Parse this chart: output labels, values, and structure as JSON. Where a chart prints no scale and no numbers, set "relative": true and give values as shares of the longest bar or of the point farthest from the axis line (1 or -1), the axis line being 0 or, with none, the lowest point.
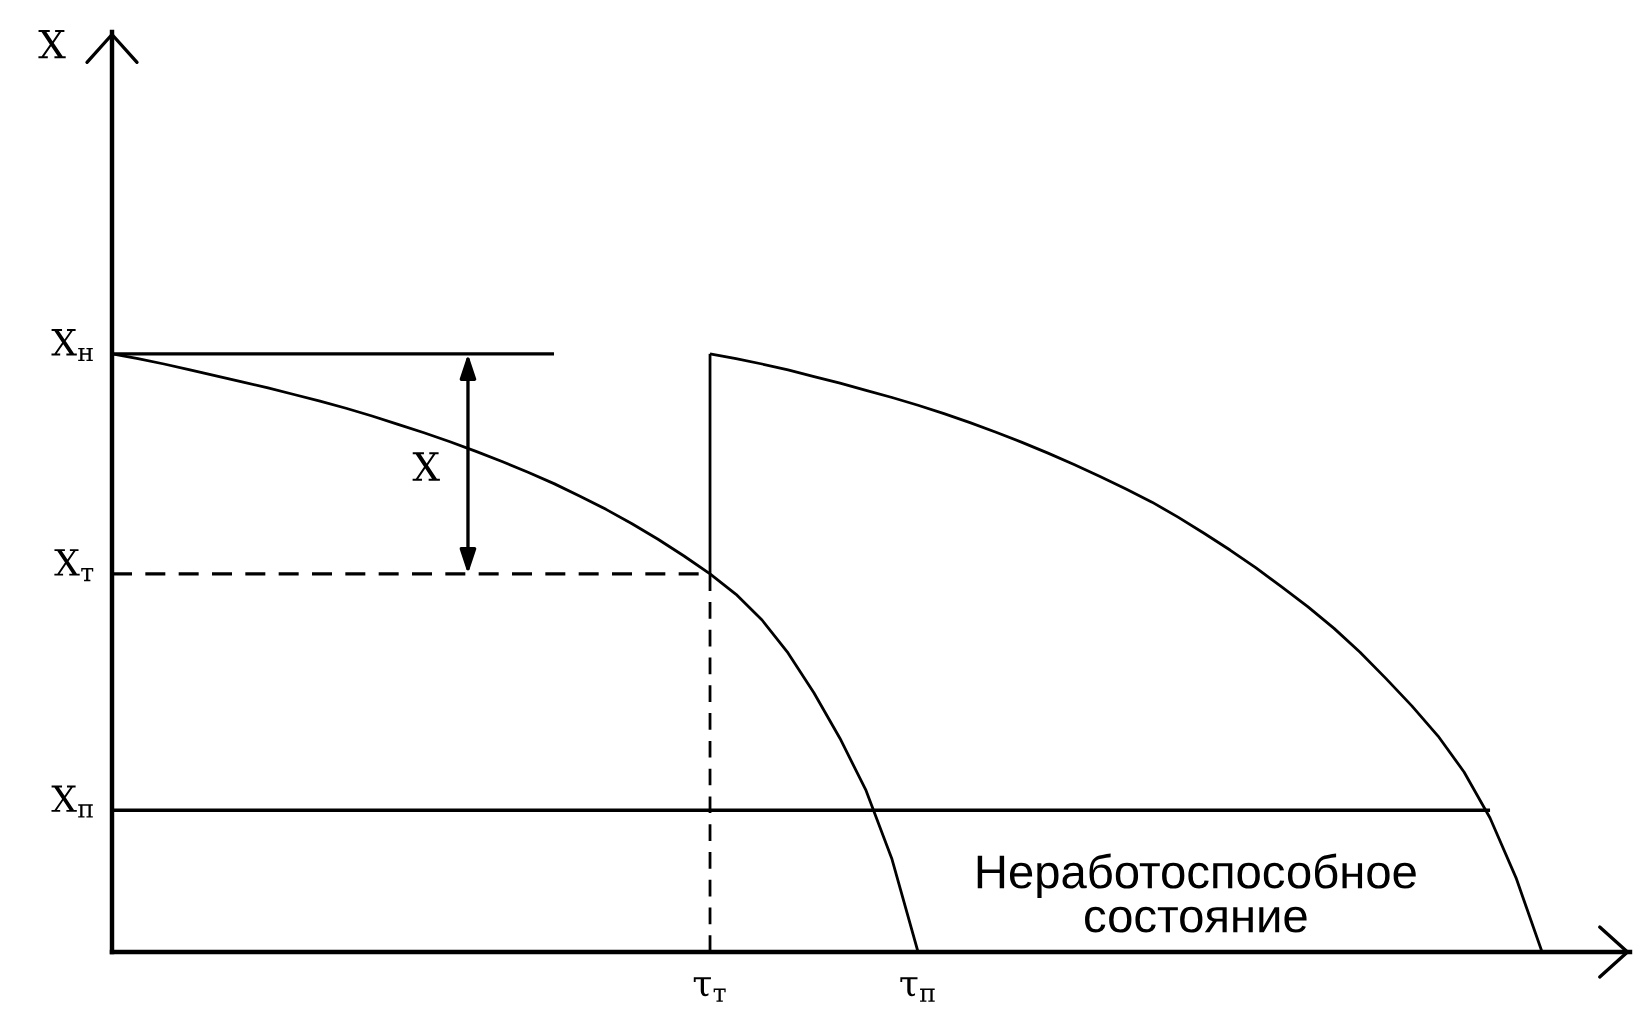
{
  "chart_data": {
    "type": "line",
    "relative": true,
    "categories": [
      null,
      null,
      null,
      null,
      null,
      null,
      null,
      null,
      null,
      null,
      null,
      null,
      null,
      null,
      null,
      null,
      null,
      null,
      null,
      null,
      null,
      null,
      null,
      "τ$_{т}$",
      null,
      null,
      null,
      null,
      null,
      null,
      null,
      "τ$_{п}$",
      null,
      null,
      null,
      null,
      null,
      null,
      null,
      null,
      null,
      null,
      null,
      null,
      null,
      null,
      null,
      null,
      null,
      null,
      null,
      null,
      null,
      null,
      null,
      null
    ],
    "series": [
      {
        "color": "#000000",
        "values": [
          1.0,
          0.992,
          0.983,
          0.973,
          0.963,
          0.953,
          0.943,
          0.932,
          0.921,
          0.909,
          0.896,
          0.882,
          0.868,
          0.853,
          0.837,
          0.82,
          0.802,
          0.783,
          0.762,
          0.74,
          0.716,
          0.69,
          0.662,
          0.632,
          0.598,
          0.555,
          0.5,
          0.433,
          0.357,
          0.27,
          0.155,
          0,
          null,
          null,
          null,
          null,
          null,
          null,
          null,
          null,
          null,
          null,
          null,
          null,
          null,
          null,
          null,
          null,
          null,
          null,
          null,
          null,
          null,
          null,
          null,
          null
        ]
      },
      {
        "color": "#000000",
        "values": [
          null,
          null,
          null,
          null,
          null,
          null,
          null,
          null,
          null,
          null,
          null,
          null,
          null,
          null,
          null,
          null,
          null,
          null,
          null,
          null,
          null,
          null,
          null,
          1.0,
          0.992,
          0.983,
          0.973,
          0.962,
          0.951,
          0.939,
          0.927,
          0.914,
          0.9,
          0.885,
          0.869,
          0.852,
          0.834,
          0.815,
          0.795,
          0.774,
          0.752,
          0.727,
          0.7,
          0.672,
          0.642,
          0.61,
          0.577,
          0.541,
          0.501,
          0.457,
          0.411,
          0.361,
          0.301,
          0.224,
          0.124,
          0
        ]
      },
      {
        "name": "X$_{н}$",
        "color": "#000000",
        "values": [
          1.0,
          1.0,
          1.0,
          1.0,
          1.0,
          1.0,
          1.0,
          1.0,
          1.0,
          1.0,
          1.0,
          1.0,
          1.0,
          1.0,
          1.0,
          1.0,
          1.0,
          1.0,
          null,
          null,
          null,
          null,
          null,
          null,
          null,
          null,
          null,
          null,
          null,
          null,
          null,
          null,
          null,
          null,
          null,
          null,
          null,
          null,
          null,
          null,
          null,
          null,
          null,
          null,
          null,
          null,
          null,
          null,
          null,
          null,
          null,
          null,
          null,
          null,
          null,
          null
        ]
      },
      {
        "name": "X$_{т}$",
        "color": "#000000",
        "line_style": "dashed",
        "values": [
          0.632,
          0.632,
          0.632,
          0.632,
          0.632,
          0.632,
          0.632,
          0.632,
          0.632,
          0.632,
          0.632,
          0.632,
          0.632,
          0.632,
          0.632,
          0.632,
          0.632,
          0.632,
          0.632,
          0.632,
          0.632,
          0.632,
          0.632,
          0.632,
          null,
          null,
          null,
          null,
          null,
          null,
          null,
          null,
          null,
          null,
          null,
          null,
          null,
          null,
          null,
          null,
          null,
          null,
          null,
          null,
          null,
          null,
          null,
          null,
          null,
          null,
          null,
          null,
          null,
          null,
          null,
          null
        ]
      },
      {
        "name": "X$_{п}$",
        "color": "#000000",
        "values": [
          0.237,
          0.237,
          0.237,
          0.237,
          0.237,
          0.237,
          0.237,
          0.237,
          0.237,
          0.237,
          0.237,
          0.237,
          0.237,
          0.237,
          0.237,
          0.237,
          0.237,
          0.237,
          0.237,
          0.237,
          0.237,
          0.237,
          0.237,
          0.237,
          0.237,
          0.237,
          0.237,
          0.237,
          0.237,
          0.237,
          0.237,
          0.237,
          0.237,
          0.237,
          0.237,
          0.237,
          0.237,
          0.237,
          0.237,
          0.237,
          0.237,
          0.237,
          0.237,
          0.237,
          0.237,
          0.237,
          0.237,
          0.237,
          0.237,
          0.237,
          0.237,
          0.237,
          0.237,
          0.237,
          null,
          null
        ]
      },
      {
        "color": "#000000",
        "line_style": "dashed",
        "x": [
          "τ$_{т}$",
          "τ$_{т}$"
        ],
        "values": [
          0,
          0.632
        ]
      },
      {
        "color": "#000000",
        "x": [
          "τ$_{т}$",
          "τ$_{т}$"
        ],
        "values": [
          0.632,
          1.0
        ]
      }
    ],
    "annotations": [
      "X",
      "X",
      "Неработоспособное\nсостояние"
    ]
  }
}
